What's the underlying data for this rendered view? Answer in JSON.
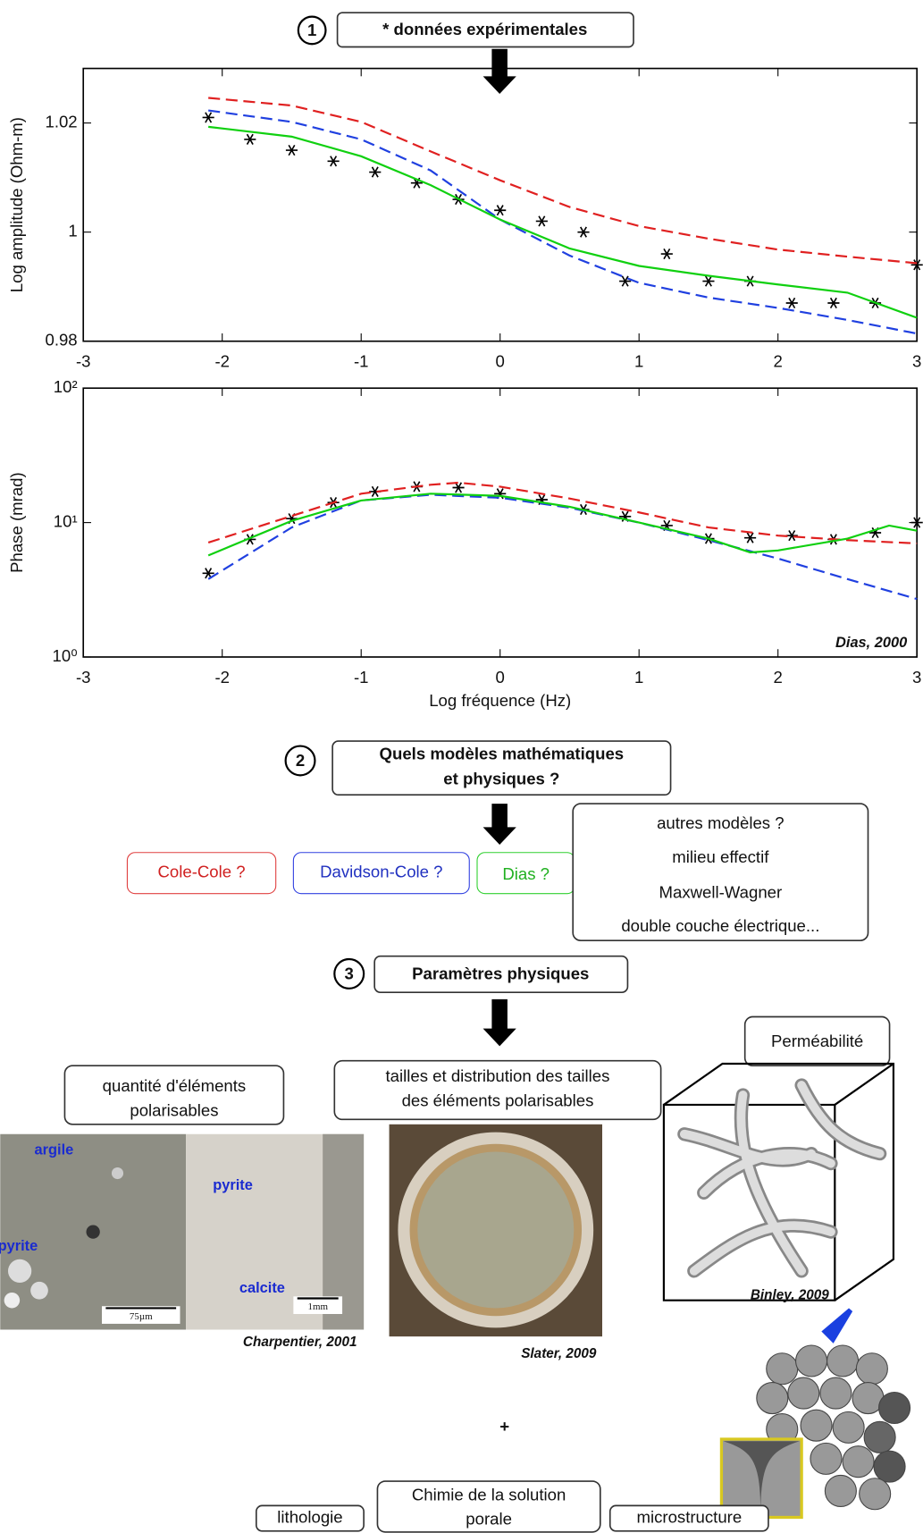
{
  "steps": [
    {
      "number": "1",
      "lines": [
        "* données expérimentales"
      ]
    },
    {
      "number": "2",
      "lines": [
        "Quels modèles mathématiques",
        "et physiques ?"
      ]
    },
    {
      "number": "3",
      "lines": [
        "Paramètres physiques"
      ]
    }
  ],
  "chart_data": [
    {
      "type": "line",
      "ylabel": "Log amplitude (Ohm-m)",
      "xlim": [
        -3,
        3
      ],
      "xticks": [
        -3,
        -2,
        -1,
        0,
        1,
        2,
        3
      ],
      "ylim": [
        0.98,
        1.03
      ],
      "yticks": [
        0.98,
        1,
        1.02
      ],
      "series": [
        {
          "color": "#000000",
          "marker": "*",
          "linestyle": "none",
          "x": [
            -2.1,
            -1.8,
            -1.5,
            -1.2,
            -0.9,
            -0.6,
            -0.3,
            0,
            0.3,
            0.6,
            0.9,
            1.2,
            1.5,
            1.8,
            2.1,
            2.4,
            2.7,
            3.0
          ],
          "values": [
            1.021,
            1.017,
            1.015,
            1.013,
            1.011,
            1.009,
            1.006,
            1.004,
            1.002,
            1.0,
            0.991,
            0.996,
            0.991,
            0.991,
            0.987,
            0.987,
            0.987,
            0.994
          ]
        },
        {
          "color": "#e02020",
          "linestyle": "dashed",
          "x": [
            -2.1,
            -1.5,
            -1,
            -0.5,
            0,
            0.5,
            1,
            1.5,
            2,
            2.5,
            3
          ],
          "values": [
            1.0246,
            1.0232,
            1.0202,
            1.0148,
            1.0095,
            1.0046,
            1.0011,
            0.9988,
            0.9968,
            0.9955,
            0.9943
          ]
        },
        {
          "color": "#2040e0",
          "linestyle": "dashed",
          "x": [
            -2.1,
            -1.5,
            -1,
            -0.5,
            0,
            0.5,
            1,
            1.5,
            2,
            2.5,
            3
          ],
          "values": [
            1.0223,
            1.0202,
            1.017,
            1.0113,
            1.0023,
            0.9957,
            0.9907,
            0.988,
            0.9861,
            0.9839,
            0.9814
          ]
        },
        {
          "color": "#10d010",
          "linestyle": "solid",
          "x": [
            -2.1,
            -1.5,
            -1,
            -0.5,
            0,
            0.5,
            1,
            1.5,
            2,
            2.5,
            3
          ],
          "values": [
            1.0193,
            1.0175,
            1.0139,
            1.0086,
            1.0023,
            0.997,
            0.9938,
            0.992,
            0.9904,
            0.9889,
            0.9843
          ]
        }
      ]
    },
    {
      "type": "line",
      "ylabel": "Phase (mrad)",
      "xlabel": "Log fréquence (Hz)",
      "annotation": "Dias, 2000",
      "log_y": true,
      "xlim": [
        -3,
        3
      ],
      "xticks": [
        -3,
        -2,
        -1,
        0,
        1,
        2,
        3
      ],
      "ylim": [
        1,
        100
      ],
      "yticks": [
        {
          "value": 1,
          "label": "10⁰"
        },
        {
          "value": 10,
          "label": "10¹"
        },
        {
          "value": 100,
          "label": "10²"
        }
      ],
      "series": [
        {
          "color": "#000000",
          "marker": "*",
          "linestyle": "none",
          "x": [
            -2.1,
            -1.8,
            -1.5,
            -1.2,
            -0.9,
            -0.6,
            -0.3,
            0,
            0.3,
            0.6,
            0.9,
            1.2,
            1.5,
            1.8,
            2.1,
            2.4,
            2.7,
            3.0
          ],
          "values": [
            4.2,
            7.5,
            10.7,
            14.1,
            17.0,
            18.5,
            18.2,
            16.4,
            14.8,
            12.5,
            11.1,
            9.5,
            7.6,
            7.7,
            8.0,
            7.5,
            8.4,
            10
          ]
        },
        {
          "color": "#e02020",
          "linestyle": "dashed",
          "x": [
            -2.1,
            -1.5,
            -1,
            -0.5,
            -0.3,
            0,
            0.5,
            1,
            1.5,
            2,
            2.5,
            3
          ],
          "values": [
            7.1,
            11.2,
            16.4,
            19.1,
            19.8,
            18.5,
            15.1,
            11.9,
            9.2,
            8.0,
            7.4,
            7.0
          ]
        },
        {
          "color": "#2040e0",
          "linestyle": "dashed",
          "x": [
            -2.1,
            -1.5,
            -1,
            -0.5,
            0,
            0.5,
            1,
            1.5,
            2,
            2.5,
            3
          ],
          "values": [
            3.8,
            9.2,
            14.6,
            16.1,
            15.3,
            12.9,
            10,
            7.4,
            5.4,
            3.8,
            2.7
          ]
        },
        {
          "color": "#10d010",
          "linestyle": "solid",
          "x": [
            -2.1,
            -1.5,
            -1,
            -0.5,
            0,
            0.5,
            1,
            1.5,
            1.8,
            2,
            2.5,
            2.8,
            3
          ],
          "values": [
            5.7,
            10.3,
            14.6,
            16.4,
            15.8,
            13.1,
            10,
            7.6,
            6.0,
            6.2,
            7.6,
            9.5,
            8.7
          ]
        }
      ]
    }
  ],
  "models": [
    "Cole-Cole ?",
    "Davidson-Cole ?",
    "Dias ?"
  ],
  "other_models": [
    "autres modèles ?",
    "milieu effectif",
    "Maxwell-Wagner",
    "double couche électrique..."
  ],
  "parameters": {
    "quantity": [
      "quantité d'éléments",
      "polarisables"
    ],
    "sizes": [
      "tailles et distribution des tailles",
      "des éléments polarisables"
    ],
    "permeability": "Perméabilité",
    "photo_labels": [
      "argile",
      "pyrite",
      "pyrite",
      "calcite"
    ],
    "scale_bars": [
      "75µm",
      "1mm"
    ],
    "credits": [
      "Charpentier, 2001",
      "Slater, 2009",
      "Binley, 2009"
    ],
    "plus": "+",
    "bottom": {
      "lithology": "lithologie",
      "chemistry": [
        "Chimie de la solution",
        "porale"
      ],
      "microstructure": "microstructure"
    }
  }
}
